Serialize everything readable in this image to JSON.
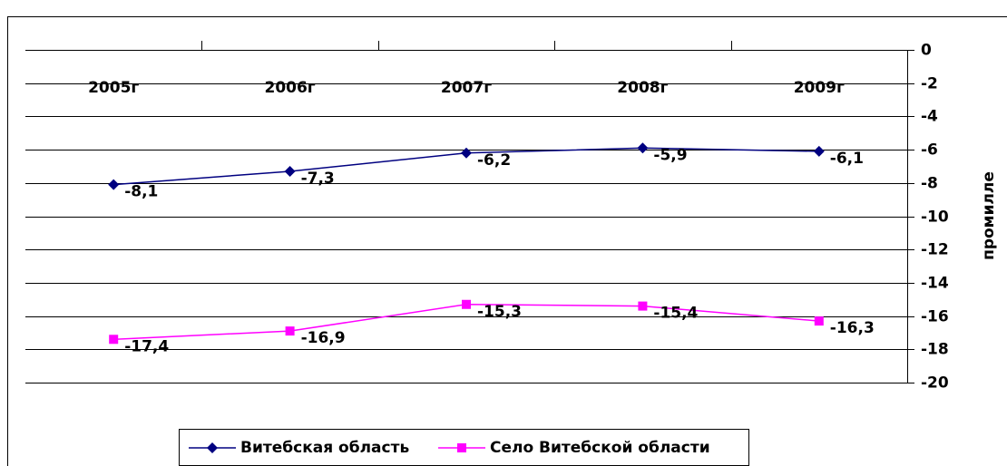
{
  "chart_data": {
    "type": "line",
    "categories": [
      "2005г",
      "2006г",
      "2007г",
      "2008г",
      "2009г"
    ],
    "series": [
      {
        "name": "Витебская область",
        "color": "#000080",
        "marker": "diamond",
        "values": [
          -8.1,
          -7.3,
          -6.2,
          -5.9,
          -6.1
        ],
        "value_labels": [
          "-8,1",
          "-7,3",
          "-6,2",
          "-5,9",
          "-6,1"
        ]
      },
      {
        "name": "Село Витебской области",
        "color": "#ff00ff",
        "marker": "square",
        "values": [
          -17.4,
          -16.9,
          -15.3,
          -15.4,
          -16.3
        ],
        "value_labels": [
          "-17,4",
          "-16,9",
          "-15,3",
          "-15,4",
          "-16,3"
        ]
      }
    ],
    "ylim": [
      -20,
      0
    ],
    "yticks": [
      0,
      -2,
      -4,
      -6,
      -8,
      -10,
      -12,
      -14,
      -16,
      -18,
      -20
    ],
    "y_axis_label": "промилле",
    "y_axis_side": "right",
    "grid": true,
    "legend": "bottom"
  }
}
